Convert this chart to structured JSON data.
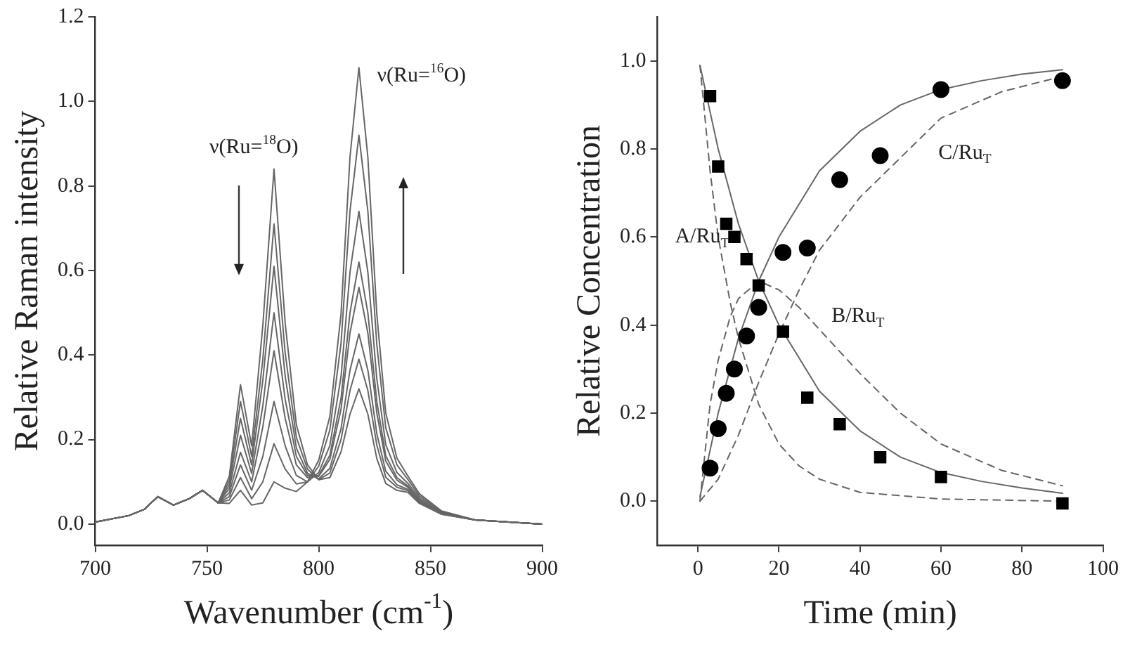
{
  "chart_data": [
    {
      "type": "line",
      "xlabel": "Wavenumber (cm$^{-1}$)",
      "ylabel": "Relative Raman intensity",
      "marker": "none",
      "line_style": "solid",
      "grid": false,
      "legend": false,
      "x": [
        700,
        715,
        722,
        728,
        735,
        742,
        748,
        755,
        760,
        765,
        770,
        775,
        780,
        785,
        790,
        795,
        800,
        805,
        810,
        814,
        818,
        822,
        826,
        830,
        835,
        840,
        845,
        855,
        870,
        885,
        900
      ],
      "xlim": [
        700,
        900
      ],
      "xticks": [
        700,
        750,
        800,
        850,
        900
      ],
      "ylim": [
        -0.05,
        1.2
      ],
      "yticks": [
        {
          "value": 0,
          "label": "0.0"
        },
        {
          "value": 0.2,
          "label": "0.2"
        },
        {
          "value": 0.4,
          "label": "0.4"
        },
        {
          "value": 0.6,
          "label": "0.6"
        },
        {
          "value": 0.8,
          "label": "0.8"
        },
        {
          "value": 1,
          "label": "1.0"
        },
        {
          "value": 1.2,
          "label": "1.2"
        }
      ],
      "annotations": [
        "ν(Ru=$^{18}$O)",
        "ν(Ru=$^{16}$O)"
      ],
      "series": [
        {
          "color": "#666666",
          "values": [
            0.005,
            0.02,
            0.035,
            0.065,
            0.045,
            0.06,
            0.08,
            0.05,
            0.113,
            0.33,
            0.185,
            0.47,
            0.84,
            0.475,
            0.235,
            0.14,
            0.105,
            0.11,
            0.171,
            0.26,
            0.32,
            0.26,
            0.155,
            0.096,
            0.08,
            0.075,
            0.049,
            0.023,
            0.01,
            0.005,
            0
          ]
        },
        {
          "color": "#666666",
          "values": [
            0.005,
            0.02,
            0.035,
            0.065,
            0.045,
            0.06,
            0.08,
            0.05,
            0.103,
            0.29,
            0.16,
            0.39,
            0.71,
            0.405,
            0.205,
            0.13,
            0.105,
            0.121,
            0.2,
            0.316,
            0.39,
            0.316,
            0.187,
            0.111,
            0.087,
            0.079,
            0.051,
            0.024,
            0.01,
            0.005,
            0
          ]
        },
        {
          "color": "#666666",
          "values": [
            0.005,
            0.02,
            0.035,
            0.065,
            0.045,
            0.06,
            0.08,
            0.05,
            0.093,
            0.25,
            0.14,
            0.34,
            0.61,
            0.35,
            0.18,
            0.12,
            0.107,
            0.132,
            0.226,
            0.364,
            0.45,
            0.364,
            0.214,
            0.125,
            0.093,
            0.082,
            0.053,
            0.024,
            0.01,
            0.005,
            0
          ]
        },
        {
          "color": "#666666",
          "values": [
            0.005,
            0.02,
            0.035,
            0.065,
            0.045,
            0.06,
            0.08,
            0.05,
            0.084,
            0.21,
            0.12,
            0.28,
            0.5,
            0.295,
            0.16,
            0.115,
            0.113,
            0.153,
            0.272,
            0.452,
            0.56,
            0.452,
            0.263,
            0.149,
            0.104,
            0.087,
            0.056,
            0.025,
            0.01,
            0.005,
            0
          ]
        },
        {
          "color": "#666666",
          "values": [
            0.005,
            0.02,
            0.035,
            0.065,
            0.045,
            0.06,
            0.08,
            0.05,
            0.074,
            0.17,
            0.1,
            0.23,
            0.41,
            0.25,
            0.14,
            0.11,
            0.115,
            0.163,
            0.298,
            0.5,
            0.62,
            0.5,
            0.29,
            0.162,
            0.11,
            0.09,
            0.058,
            0.026,
            0.01,
            0.005,
            0
          ]
        },
        {
          "color": "#666666",
          "values": [
            0.005,
            0.02,
            0.035,
            0.065,
            0.045,
            0.06,
            0.08,
            0.05,
            0.065,
            0.14,
            0.08,
            0.16,
            0.29,
            0.185,
            0.115,
            0.1,
            0.122,
            0.186,
            0.349,
            0.596,
            0.74,
            0.596,
            0.344,
            0.188,
            0.122,
            0.096,
            0.062,
            0.027,
            0.01,
            0.005,
            0
          ]
        },
        {
          "color": "#666666",
          "values": [
            0.005,
            0.02,
            0.035,
            0.065,
            0.045,
            0.06,
            0.08,
            0.05,
            0.057,
            0.11,
            0.06,
            0.1,
            0.19,
            0.13,
            0.095,
            0.1,
            0.137,
            0.223,
            0.428,
            0.74,
            0.92,
            0.74,
            0.425,
            0.228,
            0.14,
            0.105,
            0.067,
            0.029,
            0.01,
            0.005,
            0
          ]
        },
        {
          "color": "#666666",
          "values": [
            0.005,
            0.02,
            0.035,
            0.065,
            0.045,
            0.06,
            0.08,
            0.05,
            0.049,
            0.08,
            0.045,
            0.05,
            0.1,
            0.085,
            0.077,
            0.1,
            0.151,
            0.255,
            0.498,
            0.868,
            1.08,
            0.868,
            0.497,
            0.263,
            0.156,
            0.113,
            0.072,
            0.031,
            0.01,
            0.005,
            0
          ]
        }
      ]
    },
    {
      "type": "scatter",
      "xlabel": "Time (min)",
      "ylabel": "Relative Concentration",
      "grid": false,
      "legend": false,
      "xlim": [
        -10,
        100
      ],
      "xticks": [
        0,
        20,
        40,
        60,
        80,
        100
      ],
      "ylim": [
        -0.1,
        1.1
      ],
      "yticks": [
        {
          "value": 0,
          "label": "0.0"
        },
        {
          "value": 0.2,
          "label": "0.2"
        },
        {
          "value": 0.4,
          "label": "0.4"
        },
        {
          "value": 0.6,
          "label": "0.6"
        },
        {
          "value": 0.8,
          "label": "0.8"
        },
        {
          "value": 1,
          "label": "1.0"
        }
      ],
      "annotations": [
        "A/Ru$_{T}$",
        "B/Ru$_{T}$",
        "C/Ru$_{T}$"
      ],
      "series": [
        {
          "marker": "square",
          "color": "#000000",
          "x": [
            3,
            5,
            7,
            9,
            12,
            15,
            21,
            27,
            35,
            45,
            60,
            90
          ],
          "values": [
            0.92,
            0.76,
            0.63,
            0.6,
            0.55,
            0.49,
            0.385,
            0.235,
            0.175,
            0.1,
            0.055,
            -0.005
          ]
        },
        {
          "marker": "circle",
          "color": "#000000",
          "x": [
            3,
            5,
            7,
            9,
            12,
            15,
            21,
            27,
            35,
            45,
            60,
            90
          ],
          "values": [
            0.075,
            0.165,
            0.245,
            0.3,
            0.375,
            0.44,
            0.565,
            0.575,
            0.73,
            0.785,
            0.935,
            0.955
          ]
        },
        {
          "type": "line",
          "marker": "none",
          "line_style": "solid",
          "color": "#666666",
          "x": [
            0.5,
            5,
            10,
            15,
            20,
            30,
            40,
            50,
            60,
            70,
            80,
            90
          ],
          "values": [
            0.99,
            0.8,
            0.63,
            0.5,
            0.4,
            0.25,
            0.16,
            0.1,
            0.065,
            0.045,
            0.03,
            0.018
          ]
        },
        {
          "type": "line",
          "marker": "none",
          "line_style": "solid",
          "color": "#666666",
          "x": [
            0.5,
            5,
            10,
            15,
            20,
            30,
            40,
            50,
            60,
            70,
            80,
            90
          ],
          "values": [
            0.01,
            0.2,
            0.37,
            0.5,
            0.6,
            0.75,
            0.84,
            0.9,
            0.935,
            0.955,
            0.97,
            0.98
          ]
        },
        {
          "type": "line",
          "marker": "none",
          "line_style": "dashed",
          "color": "#666666",
          "x": [
            0.5,
            3,
            5,
            8,
            10,
            15,
            20,
            25,
            30,
            40,
            60,
            90
          ],
          "values": [
            0.99,
            0.75,
            0.6,
            0.45,
            0.37,
            0.22,
            0.13,
            0.08,
            0.05,
            0.02,
            0.005,
            0
          ]
        },
        {
          "type": "line",
          "marker": "none",
          "line_style": "dashed",
          "color": "#666666",
          "x": [
            0.5,
            3,
            5,
            8,
            10,
            15,
            20,
            25,
            30,
            40,
            50,
            60,
            75,
            90
          ],
          "values": [
            0,
            0.22,
            0.32,
            0.42,
            0.46,
            0.5,
            0.48,
            0.44,
            0.39,
            0.29,
            0.2,
            0.13,
            0.07,
            0.035
          ]
        },
        {
          "type": "line",
          "marker": "none",
          "line_style": "dashed",
          "color": "#666666",
          "x": [
            0.5,
            5,
            10,
            15,
            20,
            25,
            30,
            40,
            50,
            60,
            75,
            90
          ],
          "values": [
            0,
            0.05,
            0.15,
            0.27,
            0.38,
            0.48,
            0.57,
            0.69,
            0.78,
            0.87,
            0.93,
            0.965
          ]
        }
      ]
    }
  ]
}
